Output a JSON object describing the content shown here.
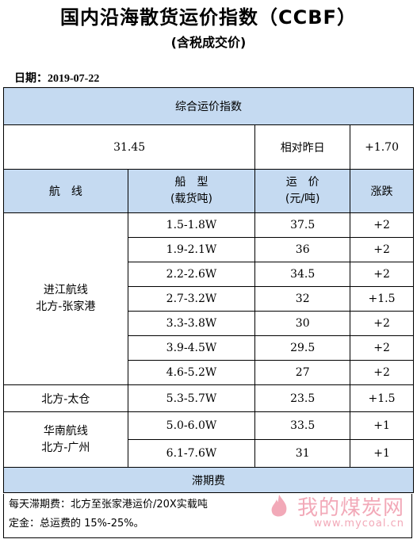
{
  "header": {
    "title": "国内沿海散货运价指数（CCBF）",
    "subtitle": "(含税成交价)",
    "date_label": "日期：2019-07-22"
  },
  "index": {
    "section_title": "综合运价指数",
    "value": "31.45",
    "compare_label": "相对昨日",
    "change": "+1.70"
  },
  "columns": {
    "route": "航　线",
    "ship_type_line1": "船　型",
    "ship_type_line2": "(载货吨)",
    "freight_line1": "运　价",
    "freight_line2": "(元/吨)",
    "change": "涨跌"
  },
  "groups": [
    {
      "route_line1": "进江航线",
      "route_line2": "北方-张家港",
      "rows": [
        {
          "ship": "1.5-1.8W",
          "price": "37.5",
          "change": "+2"
        },
        {
          "ship": "1.9-2.1W",
          "price": "36",
          "change": "+2"
        },
        {
          "ship": "2.2-2.6W",
          "price": "34.5",
          "change": "+2"
        },
        {
          "ship": "2.7-3.2W",
          "price": "32",
          "change": "+1.5"
        },
        {
          "ship": "3.3-3.8W",
          "price": "30",
          "change": "+2"
        },
        {
          "ship": "3.9-4.5W",
          "price": "29.5",
          "change": "+2"
        },
        {
          "ship": "4.6-5.2W",
          "price": "27",
          "change": "+2"
        }
      ]
    },
    {
      "route_line1": "北方-太仓",
      "route_line2": "",
      "rows": [
        {
          "ship": "5.3-5.7W",
          "price": "23.5",
          "change": "+1.5"
        }
      ]
    },
    {
      "route_line1": "华南航线",
      "route_line2": "北方-广州",
      "rows": [
        {
          "ship": "5.0-6.0W",
          "price": "33.5",
          "change": "+1"
        },
        {
          "ship": "6.1-7.6W",
          "price": "31",
          "change": "+1"
        }
      ]
    }
  ],
  "demurrage": {
    "title": "滞期费",
    "line1": "每天滞期费：北方至张家港运价/20X实载吨",
    "line2": "定金：总运费的 15%-25%。"
  },
  "watermark": {
    "text": "我的煤炭网",
    "url": "www.mycoal.cn"
  },
  "colors": {
    "header_fill": "#c5daf1",
    "watermark": "#f2a9b8"
  }
}
